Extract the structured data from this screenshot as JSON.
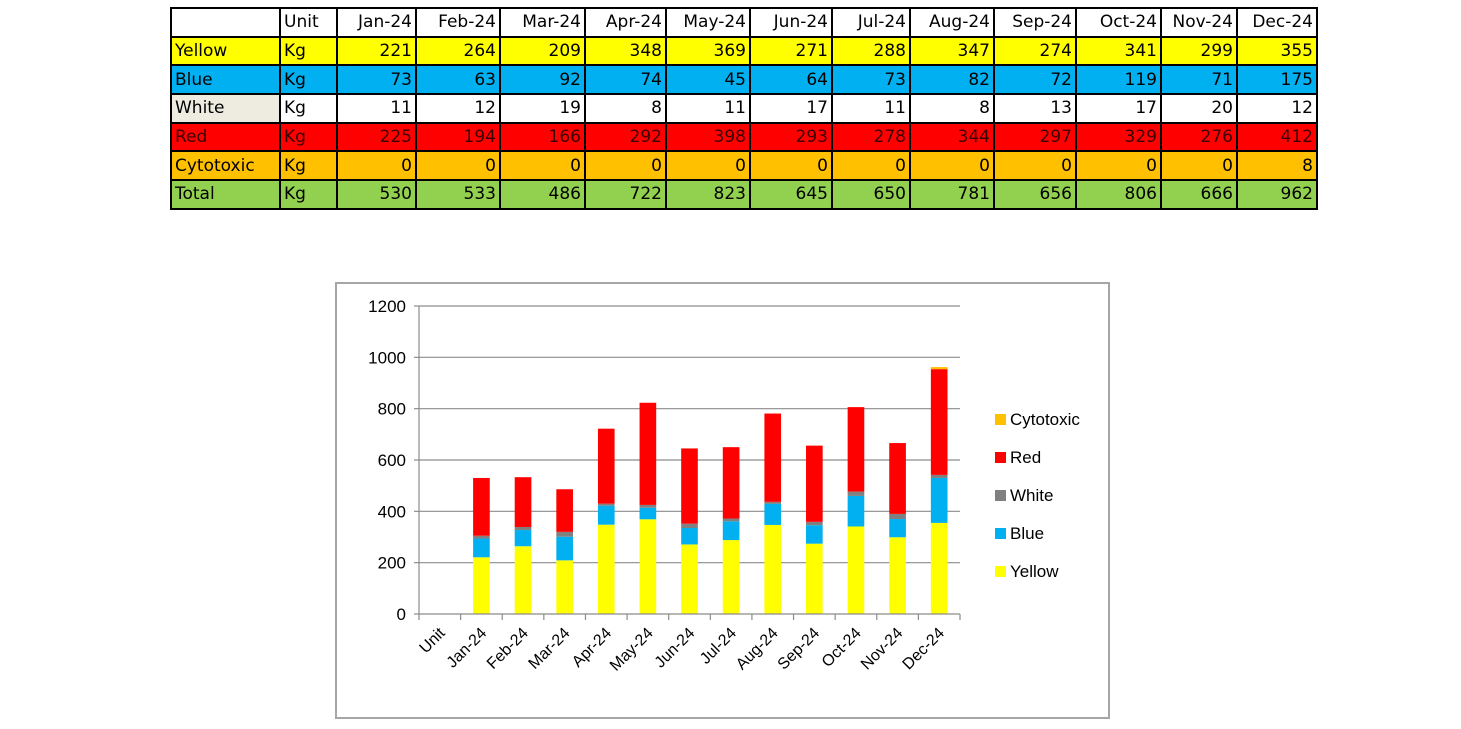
{
  "table": {
    "header": [
      "",
      "Unit",
      "Jan-24",
      "Feb-24",
      "Mar-24",
      "Apr-24",
      "May-24",
      "Jun-24",
      "Jul-24",
      "Aug-24",
      "Sep-24",
      "Oct-24",
      "Nov-24",
      "Dec-24"
    ],
    "rows": [
      {
        "label": "Yellow",
        "unit": "Kg",
        "values": [
          "221",
          "264",
          "209",
          "348",
          "369",
          "271",
          "288",
          "347",
          "274",
          "341",
          "299",
          "355"
        ],
        "bg": "#ffff00",
        "label_bg": "#ffff00",
        "text_color": "#000000"
      },
      {
        "label": "Blue",
        "unit": "Kg",
        "values": [
          "73",
          "63",
          "92",
          "74",
          "45",
          "64",
          "73",
          "82",
          "72",
          "119",
          "71",
          "175"
        ],
        "bg": "#00b0f0",
        "label_bg": "#00b0f0",
        "text_color": "#000000"
      },
      {
        "label": "White",
        "unit": "Kg",
        "values": [
          "11",
          "12",
          "19",
          "8",
          "11",
          "17",
          "11",
          "8",
          "13",
          "17",
          "20",
          "12"
        ],
        "bg": "#ffffff",
        "label_bg": "#eeece1",
        "text_color": "#000000"
      },
      {
        "label": "Red",
        "unit": "Kg",
        "values": [
          "225",
          "194",
          "166",
          "292",
          "398",
          "293",
          "278",
          "344",
          "297",
          "329",
          "276",
          "412"
        ],
        "bg": "#ff0000",
        "label_bg": "#ff0000",
        "text_color": "#3a0000"
      },
      {
        "label": "Cytotoxic",
        "unit": "Kg",
        "values": [
          "0",
          "0",
          "0",
          "0",
          "0",
          "0",
          "0",
          "0",
          "0",
          "0",
          "0",
          "8"
        ],
        "bg": "#ffc000",
        "label_bg": "#ffc000",
        "text_color": "#000000"
      },
      {
        "label": "Total",
        "unit": "Kg",
        "values": [
          "530",
          "533",
          "486",
          "722",
          "823",
          "645",
          "650",
          "781",
          "656",
          "806",
          "666",
          "962"
        ],
        "bg": "#92d050",
        "label_bg": "#92d050",
        "text_color": "#000000"
      }
    ]
  },
  "chart_data": {
    "type": "bar",
    "stacked": true,
    "title": "",
    "xlabel": "",
    "ylabel": "",
    "categories": [
      "Unit",
      "Jan-24",
      "Feb-24",
      "Mar-24",
      "Apr-24",
      "May-24",
      "Jun-24",
      "Jul-24",
      "Aug-24",
      "Sep-24",
      "Oct-24",
      "Nov-24",
      "Dec-24"
    ],
    "series": [
      {
        "name": "Yellow",
        "color": "#ffff00",
        "values": [
          0,
          221,
          264,
          209,
          348,
          369,
          271,
          288,
          347,
          274,
          341,
          299,
          355
        ]
      },
      {
        "name": "Blue",
        "color": "#00b0f0",
        "values": [
          0,
          73,
          63,
          92,
          74,
          45,
          64,
          73,
          82,
          72,
          119,
          71,
          175
        ]
      },
      {
        "name": "White",
        "color": "#808080",
        "values": [
          0,
          11,
          12,
          19,
          8,
          11,
          17,
          11,
          8,
          13,
          17,
          20,
          12
        ]
      },
      {
        "name": "Red",
        "color": "#ff0000",
        "values": [
          0,
          225,
          194,
          166,
          292,
          398,
          293,
          278,
          344,
          297,
          329,
          276,
          412
        ]
      },
      {
        "name": "Cytotoxic",
        "color": "#ffc000",
        "values": [
          0,
          0,
          0,
          0,
          0,
          0,
          0,
          0,
          0,
          0,
          0,
          0,
          8
        ]
      }
    ],
    "ylim": [
      0,
      1200
    ],
    "yticks": [
      "0",
      "200",
      "400",
      "600",
      "800",
      "1000",
      "1200"
    ],
    "grid": true,
    "legend": {
      "position": "right",
      "order": [
        "Cytotoxic",
        "Red",
        "White",
        "Blue",
        "Yellow"
      ]
    }
  }
}
